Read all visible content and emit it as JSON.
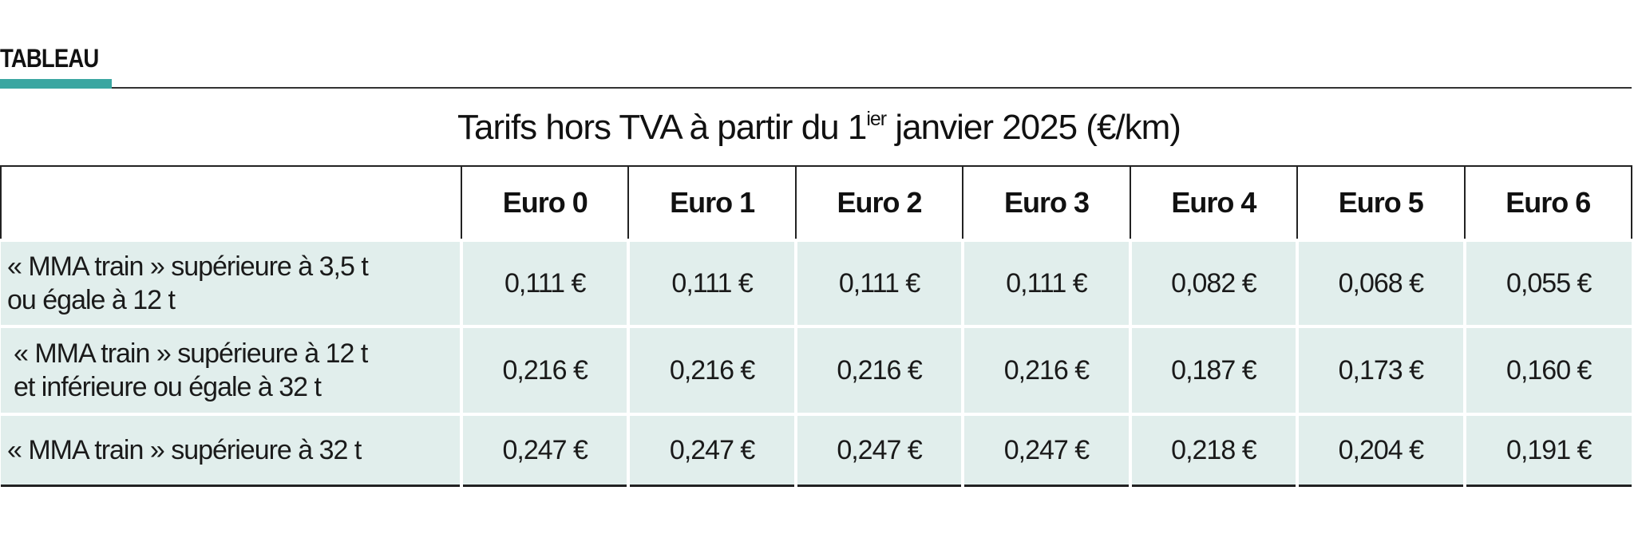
{
  "section_label": "TABLEAU",
  "title": {
    "main": "Tarifs hors TVA à partir du 1",
    "superscript": "ier",
    "suffix": " janvier 2025 (€/km)"
  },
  "table": {
    "corner": "",
    "headers": [
      "Euro 0",
      "Euro 1",
      "Euro 2",
      "Euro 3",
      "Euro 4",
      "Euro 5",
      "Euro 6"
    ],
    "rows": [
      {
        "label_line1": "« MMA train » supérieure à 3,5 t",
        "label_line2": "ou égale à 12 t",
        "values": [
          "0,111 €",
          "0,111 €",
          "0,111 €",
          "0,111 €",
          "0,082 €",
          "0,068 €",
          "0,055 €"
        ]
      },
      {
        "label_line1": "« MMA train » supérieure à 12 t",
        "label_line2": "et inférieure ou égale à 32 t",
        "values": [
          "0,216 €",
          "0,216 €",
          "0,216 €",
          "0,216 €",
          "0,187 €",
          "0,173 €",
          "0,160 €"
        ]
      },
      {
        "label_line1": "« MMA train » supérieure à 32 t",
        "label_line2": "",
        "values": [
          "0,247 €",
          "0,247 €",
          "0,247 €",
          "0,247 €",
          "0,218 €",
          "0,204 €",
          "0,191 €"
        ]
      }
    ]
  },
  "colors": {
    "accent": "#3aa6a1",
    "row_fill": "#e1eeec",
    "rule": "#333333"
  }
}
